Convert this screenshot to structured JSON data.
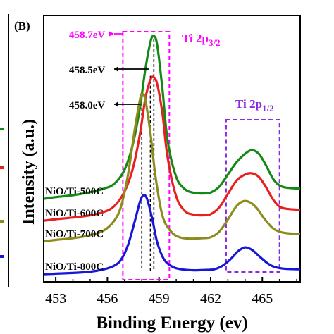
{
  "panel_label": "(B)",
  "chart_data": {
    "type": "line",
    "xlabel": "Binding Energy (ev)",
    "ylabel": "Intensity (a.u.)",
    "xlim": [
      452.3,
      467.2
    ],
    "xticks": [
      453,
      456,
      459,
      462,
      465
    ],
    "grid": false,
    "series": [
      {
        "name": "NiO/Ti-500C",
        "color": "#138a13",
        "x": [
          452.3,
          453.0,
          454.0,
          455.0,
          455.8,
          456.4,
          457.0,
          457.5,
          457.9,
          458.2,
          458.5,
          458.7,
          458.9,
          459.2,
          459.5,
          460.0,
          460.5,
          461.0,
          461.5,
          462.0,
          462.5,
          463.0,
          463.5,
          464.0,
          464.4,
          464.8,
          465.2,
          465.6,
          466.0,
          466.5,
          467.2
        ],
        "y": [
          0.33,
          0.337,
          0.345,
          0.357,
          0.372,
          0.392,
          0.45,
          0.56,
          0.71,
          0.86,
          0.975,
          1.0,
          0.96,
          0.78,
          0.57,
          0.42,
          0.37,
          0.355,
          0.352,
          0.356,
          0.38,
          0.43,
          0.48,
          0.515,
          0.53,
          0.515,
          0.47,
          0.415,
          0.385,
          0.375,
          0.372
        ]
      },
      {
        "name": "NiO/Ti-600C",
        "color": "#e82020",
        "x": [
          452.3,
          453.0,
          454.0,
          455.0,
          455.8,
          456.4,
          457.0,
          457.5,
          457.9,
          458.2,
          458.5,
          458.7,
          458.9,
          459.2,
          459.5,
          460.0,
          460.5,
          461.0,
          461.5,
          462.0,
          462.5,
          463.0,
          463.5,
          464.0,
          464.4,
          464.8,
          465.2,
          465.6,
          466.0,
          466.5,
          467.2
        ],
        "y": [
          0.24,
          0.246,
          0.253,
          0.262,
          0.276,
          0.3,
          0.36,
          0.46,
          0.6,
          0.74,
          0.82,
          0.83,
          0.8,
          0.68,
          0.5,
          0.34,
          0.28,
          0.265,
          0.262,
          0.267,
          0.295,
          0.35,
          0.405,
          0.43,
          0.435,
          0.42,
          0.38,
          0.33,
          0.298,
          0.288,
          0.285
        ]
      },
      {
        "name": "NiO/Ti-700C",
        "color": "#8c8c1e",
        "x": [
          452.3,
          453.0,
          454.0,
          455.0,
          455.8,
          456.4,
          456.8,
          457.2,
          457.6,
          457.9,
          458.0,
          458.2,
          458.5,
          458.8,
          459.2,
          459.7,
          460.2,
          460.8,
          461.5,
          462.0,
          462.5,
          463.0,
          463.5,
          463.9,
          464.3,
          464.7,
          465.1,
          465.6,
          466.0,
          466.5,
          467.2
        ],
        "y": [
          0.155,
          0.161,
          0.168,
          0.18,
          0.2,
          0.24,
          0.3,
          0.43,
          0.62,
          0.74,
          0.76,
          0.74,
          0.6,
          0.42,
          0.26,
          0.195,
          0.172,
          0.166,
          0.168,
          0.172,
          0.195,
          0.245,
          0.3,
          0.32,
          0.315,
          0.29,
          0.25,
          0.21,
          0.195,
          0.188,
          0.186
        ]
      },
      {
        "name": "NiO/Ti-800C",
        "color": "#1717d8",
        "x": [
          452.3,
          453.0,
          454.0,
          455.0,
          455.8,
          456.4,
          456.8,
          457.2,
          457.6,
          457.9,
          458.1,
          458.3,
          458.6,
          458.9,
          459.3,
          459.8,
          460.3,
          461.0,
          461.6,
          462.2,
          462.7,
          463.2,
          463.6,
          464.0,
          464.4,
          464.8,
          465.3,
          465.7,
          466.2,
          466.7,
          467.2
        ],
        "y": [
          0.02,
          0.022,
          0.025,
          0.03,
          0.04,
          0.055,
          0.08,
          0.14,
          0.24,
          0.32,
          0.345,
          0.33,
          0.25,
          0.15,
          0.08,
          0.05,
          0.04,
          0.036,
          0.037,
          0.04,
          0.055,
          0.085,
          0.115,
          0.13,
          0.12,
          0.095,
          0.065,
          0.05,
          0.043,
          0.041,
          0.04
        ]
      }
    ],
    "annotations": {
      "peak_labels": [
        {
          "text": "458.7eV",
          "x": 458.7,
          "color": "#ff00ff"
        },
        {
          "text": "458.5eV",
          "x": 458.5,
          "color": "#000000"
        },
        {
          "text": "458.0eV",
          "x": 458.0,
          "color": "#000000"
        }
      ],
      "region_2p32": {
        "label": "Ti 2p3/2",
        "label_main": "Ti 2p",
        "label_sub": "3/2",
        "color": "#ff00ff",
        "x_range": [
          456.9,
          459.6
        ]
      },
      "region_2p12": {
        "label": "Ti 2p1/2",
        "label_main": "Ti 2p",
        "label_sub": "1/2",
        "color": "#8a2be2",
        "x_range": [
          462.9,
          466.0
        ]
      }
    }
  }
}
